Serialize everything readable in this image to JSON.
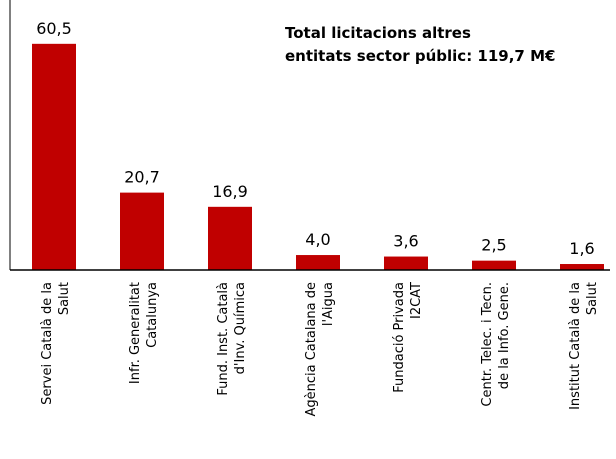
{
  "chart_data": {
    "type": "bar",
    "title": "Total licitacions altres\nentitats sector públic: 119,7 M€",
    "categories": [
      "Servei Català de la\nSalut",
      "Infr. Generalitat\nCatalunya",
      "Fund. Inst. Català\nd'Inv. Química",
      "Agència Catalana de\nl'Aigua",
      "Fundació Privada\nI2CAT",
      "Centr. Telec. i Tecn.\nde la Info. Gene.",
      "Institut Català de la\nSalut"
    ],
    "values": [
      60.5,
      20.7,
      16.9,
      4.0,
      3.6,
      2.5,
      1.6
    ],
    "value_labels": [
      "60,5",
      "20,7",
      "16,9",
      "4,0",
      "3,6",
      "2,5",
      "1,6"
    ],
    "color": "#c00000",
    "ylim": [
      0,
      65
    ]
  }
}
